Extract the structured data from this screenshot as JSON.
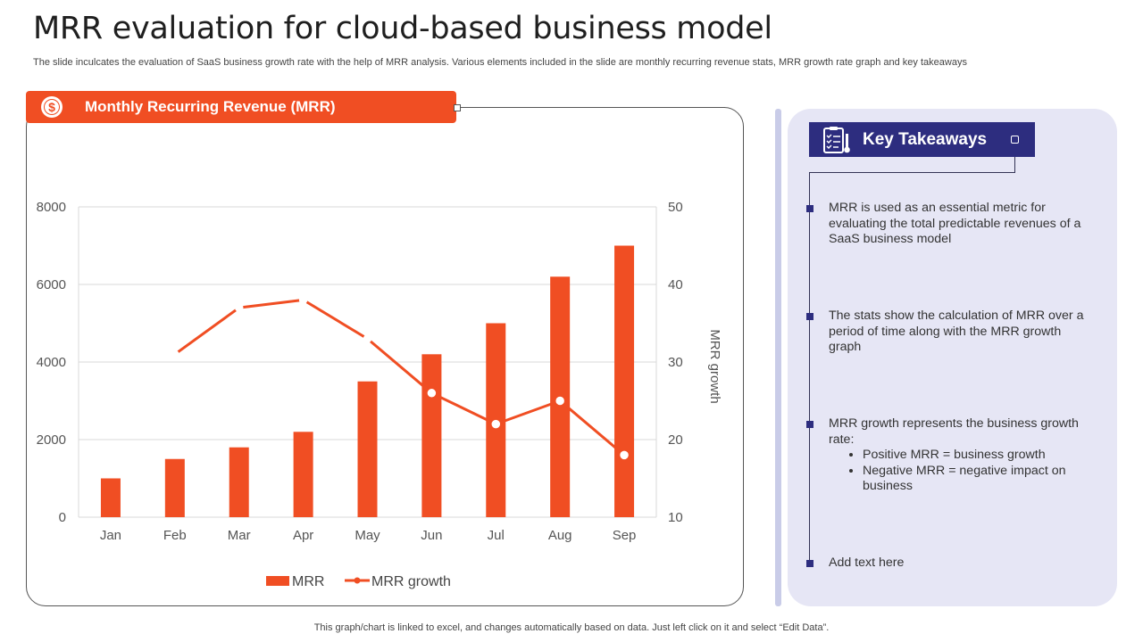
{
  "page": {
    "title": "MRR evaluation for cloud-based business model",
    "subtitle": "The slide inculcates the evaluation of SaaS business growth rate with the help of MRR analysis. Various elements included in the slide are monthly recurring revenue stats, MRR growth rate graph and key takeaways",
    "footer": "This graph/chart is linked to excel, and changes automatically based on data. Just left click on it and select “Edit Data”."
  },
  "chart_section": {
    "title": "Monthly Recurring Revenue (MRR)",
    "icon": "dollar-coin-icon"
  },
  "key_takeaways": {
    "title": "Key Takeaways",
    "icon": "checklist-clipboard-icon",
    "items": [
      {
        "text": "MRR is used as an essential metric for evaluating the total predictable revenues of a SaaS business model"
      },
      {
        "text": "The stats show the calculation of MRR over a period of time along with the MRR growth graph"
      },
      {
        "text": "MRR growth represents the business growth rate:",
        "bullets": [
          "Positive MRR = business growth",
          "Negative MRR = negative impact on business"
        ]
      },
      {
        "text": "Add text here"
      }
    ]
  },
  "colors": {
    "accent": "#f04e23",
    "navy": "#2d2d7f",
    "panel": "#e6e6f5"
  },
  "chart_data": {
    "type": "bar",
    "categories": [
      "Jan",
      "Feb",
      "Mar",
      "Apr",
      "May",
      "Jun",
      "Jul",
      "Aug",
      "Sep"
    ],
    "series": [
      {
        "name": "MRR",
        "type": "bar",
        "axis": "left",
        "values": [
          1000,
          1500,
          1800,
          2200,
          3500,
          4200,
          5000,
          6200,
          7000
        ]
      },
      {
        "name": "MRR growth",
        "type": "line",
        "axis": "right",
        "values": [
          null,
          31,
          37,
          38,
          33,
          26,
          22,
          25,
          18
        ]
      }
    ],
    "y_left": {
      "min": 0,
      "max": 8000,
      "ticks": [
        0,
        2000,
        4000,
        6000,
        8000
      ],
      "label": ""
    },
    "y_right": {
      "min": 10,
      "max": 50,
      "ticks": [
        10,
        20,
        30,
        40,
        50
      ],
      "label": "MRR growth"
    },
    "xlabel": "",
    "grid": true,
    "legend": "bottom-center"
  }
}
